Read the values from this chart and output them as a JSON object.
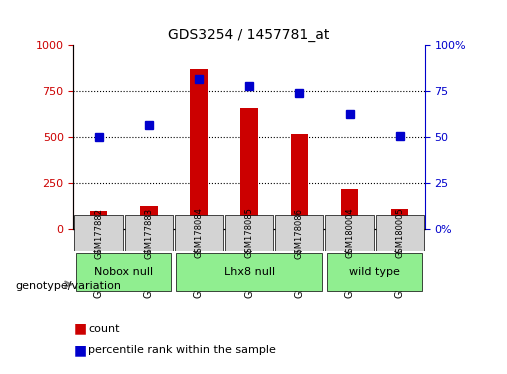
{
  "title": "GDS3254 / 1457781_at",
  "samples": [
    "GSM177882",
    "GSM177883",
    "GSM178084",
    "GSM178085",
    "GSM178086",
    "GSM180004",
    "GSM180005"
  ],
  "counts": [
    100,
    130,
    870,
    660,
    520,
    220,
    110
  ],
  "percentiles": [
    50,
    57,
    82,
    78,
    74,
    63,
    51
  ],
  "groups": [
    {
      "label": "Nobox null",
      "start": 0,
      "end": 2,
      "color": "#90EE90"
    },
    {
      "label": "Lhx8 null",
      "start": 2,
      "end": 5,
      "color": "#90EE90"
    },
    {
      "label": "wild type",
      "start": 5,
      "end": 7,
      "color": "#90EE90"
    }
  ],
  "bar_color": "#CC0000",
  "dot_color": "#0000CC",
  "left_ylim": [
    0,
    1000
  ],
  "right_ylim": [
    0,
    100
  ],
  "left_yticks": [
    0,
    250,
    500,
    750,
    1000
  ],
  "right_yticks": [
    0,
    25,
    50,
    75,
    100
  ],
  "left_yticklabels": [
    "0",
    "250",
    "500",
    "750",
    "1000"
  ],
  "right_yticklabels": [
    "0%",
    "25",
    "50",
    "75",
    "100%"
  ],
  "legend_count_label": "count",
  "legend_pct_label": "percentile rank within the sample",
  "genotype_label": "genotype/variation",
  "bg_color": "#FFFFFF",
  "plot_bg": "#FFFFFF",
  "grid_color": "#000000",
  "tick_color_left": "#CC0000",
  "tick_color_right": "#0000CC"
}
